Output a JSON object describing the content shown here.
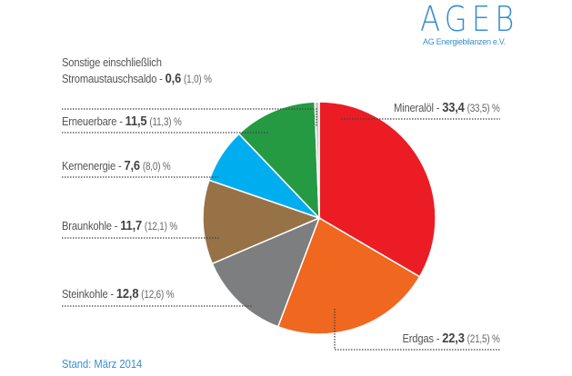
{
  "logo": {
    "title": "AGEB",
    "subtitle": "AG Energiebilanzen e.V."
  },
  "footer": "Stand: März 2014",
  "chart_data": {
    "type": "pie",
    "title": "",
    "start": "top, clockwise",
    "slices": [
      {
        "label": "Mineralöl",
        "value": 33.4,
        "prev": "33,5",
        "value_text": "33,4",
        "color": "#ec1c24"
      },
      {
        "label": "Erdgas",
        "value": 22.3,
        "prev": "21,5",
        "value_text": "22,3",
        "color": "#f0671f"
      },
      {
        "label": "Steinkohle",
        "value": 12.8,
        "prev": "12,6",
        "value_text": "12,8",
        "color": "#7d7e80"
      },
      {
        "label": "Braunkohle",
        "value": 11.7,
        "prev": "12,1",
        "value_text": "11,7",
        "color": "#977246"
      },
      {
        "label": "Kernenergie",
        "value": 7.6,
        "prev": "8,0",
        "value_text": "7,6",
        "color": "#00aeef"
      },
      {
        "label": "Erneuerbare",
        "value": 11.5,
        "prev": "11,3",
        "value_text": "11,5",
        "color": "#259a43"
      },
      {
        "label": "Sonstige einschließlich",
        "label2": "Stromaustauschsaldo",
        "value": 0.6,
        "prev": "1,0",
        "value_text": "0,6",
        "color": "#c8c8c8"
      }
    ],
    "unit": "%"
  }
}
